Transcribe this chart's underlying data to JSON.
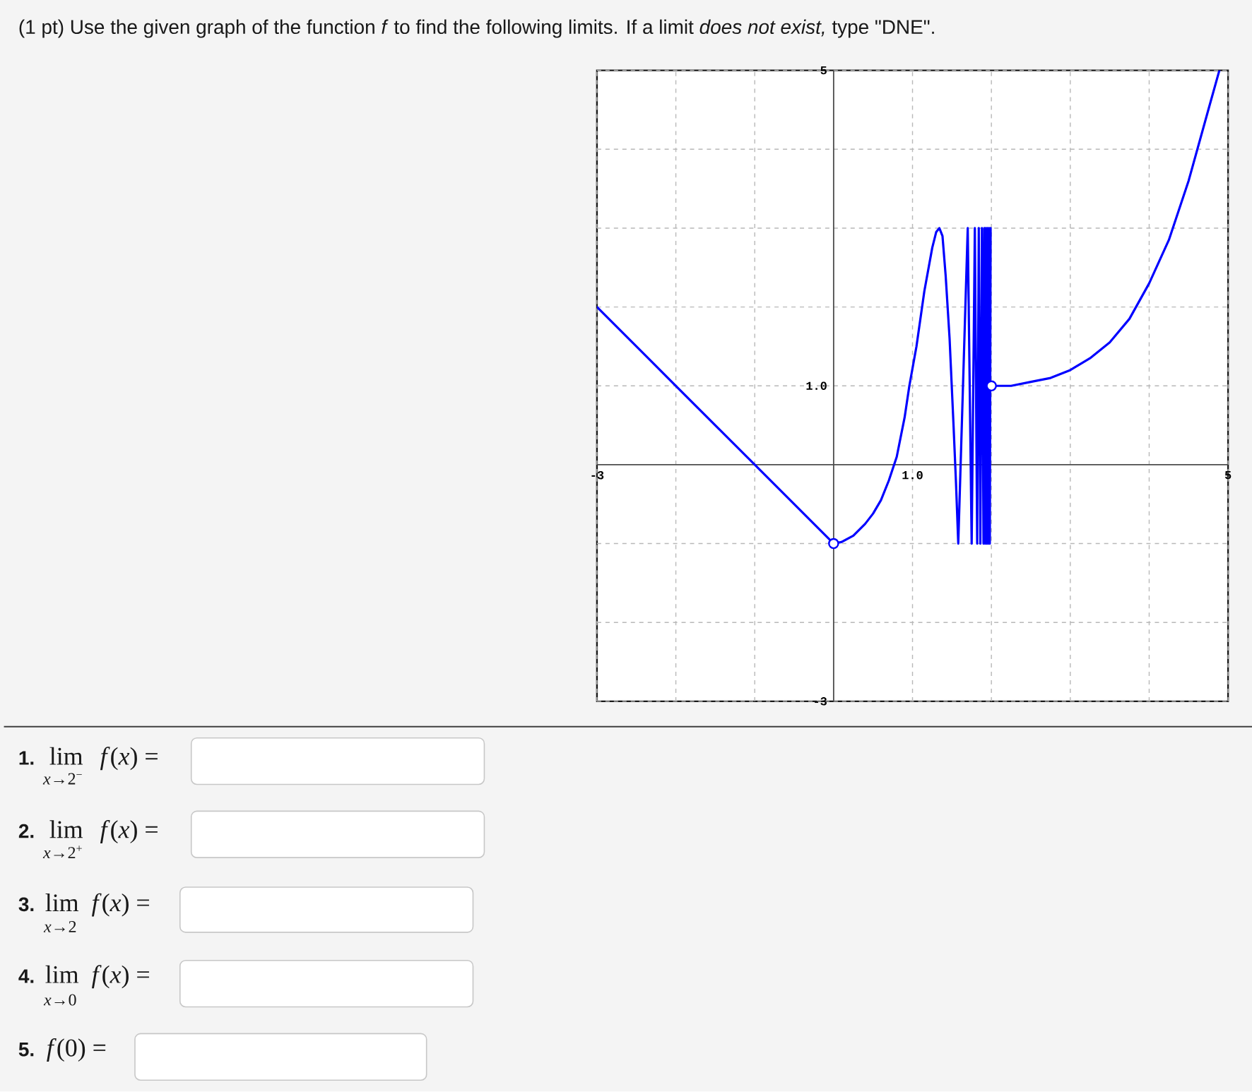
{
  "chart_data": {
    "type": "line",
    "title": "(1 pt) Use the given graph of the function *f* to find the following limits. If a limit *does not exist,* type \"DNE\".",
    "xlim": [
      -3,
      5
    ],
    "ylim": [
      -3,
      5
    ],
    "xticks": [
      {
        "value": -3,
        "label": "-3"
      },
      {
        "value": -2,
        "label": null
      },
      {
        "value": -1,
        "label": null
      },
      {
        "value": 0,
        "label": null
      },
      {
        "value": 1,
        "label": "1.0"
      },
      {
        "value": 2,
        "label": null
      },
      {
        "value": 3,
        "label": null
      },
      {
        "value": 4,
        "label": null
      },
      {
        "value": 5,
        "label": "5"
      }
    ],
    "yticks": [
      {
        "value": -3,
        "label": "-3"
      },
      {
        "value": -2,
        "label": null
      },
      {
        "value": -1,
        "label": null
      },
      {
        "value": 0,
        "label": null
      },
      {
        "value": 1,
        "label": "1.0"
      },
      {
        "value": 2,
        "label": null
      },
      {
        "value": 3,
        "label": null
      },
      {
        "value": 4,
        "label": null
      },
      {
        "value": 5,
        "label": "5"
      }
    ],
    "grid": true,
    "series": [
      {
        "color": "#0000ff",
        "x": [
          -3,
          -2,
          -1,
          0
        ],
        "values": [
          2,
          1,
          0,
          -1
        ]
      },
      {
        "color": "#0000ff",
        "x": [
          0,
          0.1,
          0.25,
          0.4,
          0.5,
          0.6,
          0.7,
          0.8,
          0.9,
          0.96,
          1.05,
          1.15,
          1.25,
          1.3,
          1.34,
          1.38,
          1.42,
          1.47,
          1.52,
          1.55,
          1.58,
          1.7,
          1.75,
          1.79,
          1.82,
          1.84,
          1.86,
          1.88,
          1.9,
          1.91,
          1.92,
          1.93,
          1.94,
          1.95,
          1.96,
          1.97,
          1.98,
          1.99
        ],
        "values": [
          -1,
          -0.98,
          -0.9,
          -0.75,
          -0.62,
          -0.45,
          -0.2,
          0.1,
          0.6,
          1,
          1.5,
          2.2,
          2.75,
          2.95,
          3,
          2.9,
          2.4,
          1.6,
          0.5,
          -0.2,
          -1,
          3,
          -1,
          3,
          -1,
          3,
          -1,
          3,
          -1,
          3,
          -1,
          3,
          -1,
          3,
          -1,
          3,
          -1,
          3
        ]
      },
      {
        "color": "#0000ff",
        "x": [
          2,
          2.25,
          2.5,
          2.75,
          3,
          3.25,
          3.5,
          3.75,
          4,
          4.25,
          4.5,
          4.75,
          4.89
        ],
        "values": [
          1,
          1,
          1.05,
          1.1,
          1.2,
          1.35,
          1.55,
          1.85,
          2.3,
          2.85,
          3.6,
          4.5,
          5
        ]
      },
      {
        "type": "scatter",
        "color": "#0000ff",
        "marker": "circle",
        "x": [
          0,
          2
        ],
        "values": [
          -1,
          1
        ]
      }
    ],
    "annotations": [
      "1.",
      "lim",
      "*x*→2$^{−}$",
      "*f*(*x*) =",
      "2.",
      "lim",
      "*x*→2$^{+}$",
      "*f*(*x*) =",
      "3.",
      "lim",
      "*x*→2",
      "*f*(*x*) =",
      "4.",
      "lim",
      "*x*→0",
      "*f*(*x*) =",
      "5.",
      "*f*(0) ="
    ]
  }
}
